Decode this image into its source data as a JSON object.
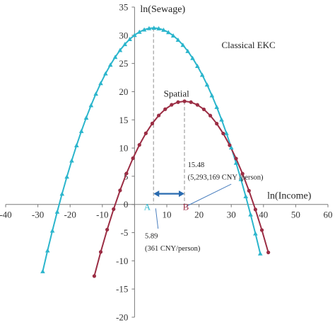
{
  "chart_data": {
    "type": "line",
    "xlabel": "ln(Income)",
    "ylabel": "ln(Sewage)",
    "xlim": [
      -40,
      60
    ],
    "ylim": [
      -20,
      35
    ],
    "x_ticks": [
      -40,
      -30,
      -20,
      -10,
      0,
      10,
      20,
      30,
      40,
      50,
      60
    ],
    "y_ticks": [
      -20,
      -15,
      -10,
      -5,
      0,
      5,
      10,
      15,
      20,
      25,
      30,
      35
    ],
    "x_tick_labels": [
      "-40",
      "-30",
      "-20",
      "-10",
      "0",
      "10",
      "20",
      "30",
      "40",
      "50",
      "60"
    ],
    "y_tick_labels": [
      "-20",
      "-15",
      "-10",
      "-5",
      "0",
      "5",
      "10",
      "15",
      "20",
      "25",
      "30",
      "35"
    ],
    "grid": false,
    "series": [
      {
        "name": "Classical EKC",
        "color": "#2bb5cc",
        "marker": "triangle",
        "vertex": [
          5.89,
          31.3
        ],
        "x_range": [
          -28.5,
          40
        ],
        "curvature": -0.0365
      },
      {
        "name": "Spatial",
        "color": "#9b2d44",
        "marker": "circle",
        "vertex": [
          15.48,
          18.3
        ],
        "x_range": [
          -12.5,
          43
        ],
        "curvature": -0.0396
      }
    ],
    "annotations": {
      "point_a": "A",
      "point_b": "B",
      "a_value": "5.89",
      "a_value_detail": "(361 CNY/person)",
      "b_value": "15.48",
      "b_value_detail": "(5,293,169 CNY /person)"
    }
  }
}
